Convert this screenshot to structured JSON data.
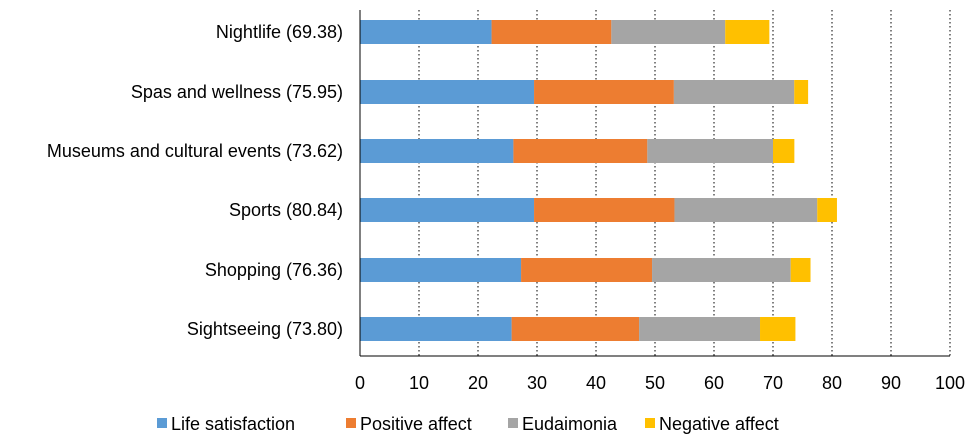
{
  "chart_data": {
    "type": "bar",
    "orientation": "horizontal",
    "stacked": true,
    "categories": [
      "Sightseeing (73.80)",
      "Shopping (76.36)",
      "Sports (80.84)",
      "Museums and cultural events (73.62)",
      "Spas and wellness (75.95)",
      "Nightlife (69.38)"
    ],
    "series": [
      {
        "name": "Life satisfaction",
        "color": "#5B9BD5",
        "values": [
          25.7,
          27.3,
          29.5,
          26.0,
          29.5,
          22.3
        ]
      },
      {
        "name": "Positive affect",
        "color": "#ED7D31",
        "values": [
          21.6,
          22.2,
          23.8,
          22.7,
          23.7,
          20.3
        ]
      },
      {
        "name": "Eudaimonia",
        "color": "#A5A5A5",
        "values": [
          20.5,
          23.5,
          24.2,
          21.3,
          20.4,
          19.3
        ]
      },
      {
        "name": "Negative affect",
        "color": "#FFC000",
        "values": [
          6.0,
          3.36,
          3.34,
          3.62,
          2.35,
          7.48
        ]
      }
    ],
    "xlim": [
      0,
      100
    ],
    "xticks": [
      "0",
      "10",
      "20",
      "30",
      "40",
      "50",
      "60",
      "70",
      "80",
      "90",
      "100"
    ],
    "grid": "vertical dotted",
    "legend_position": "bottom"
  }
}
